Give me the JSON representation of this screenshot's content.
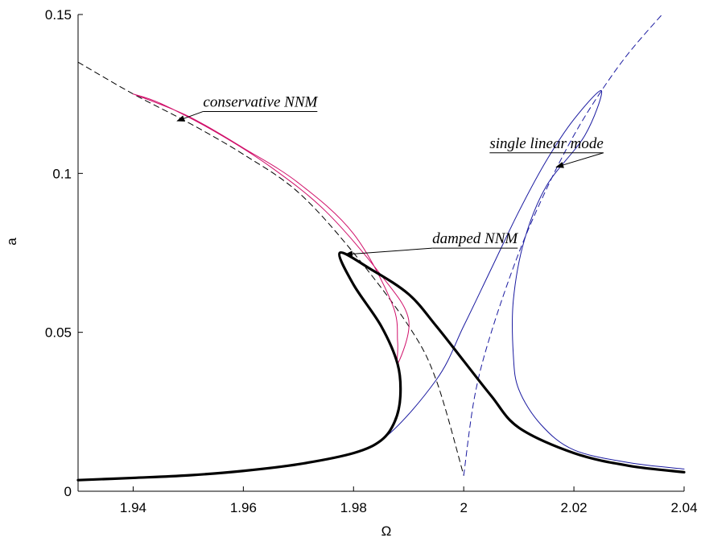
{
  "chart_data": {
    "type": "line",
    "title": "",
    "xlabel": "Ω",
    "ylabel": "a",
    "xlim": [
      1.93,
      2.04
    ],
    "ylim": [
      0,
      0.15
    ],
    "xticks": [
      1.94,
      1.96,
      1.98,
      2,
      2.02,
      2.04
    ],
    "xtick_labels": [
      "1.94",
      "1.96",
      "1.98",
      "2",
      "2.02",
      "2.04"
    ],
    "yticks": [
      0,
      0.05,
      0.1,
      0.15
    ],
    "ytick_labels": [
      "0",
      "0.05",
      "0.1",
      "0.15"
    ],
    "grid": false,
    "series": [
      {
        "role": "backbone-left",
        "color": "#000000",
        "style": "dashed",
        "points": [
          [
            1.93,
            0.135
          ],
          [
            1.94,
            0.125
          ],
          [
            1.95,
            0.116
          ],
          [
            1.96,
            0.106
          ],
          [
            1.97,
            0.094
          ],
          [
            1.98,
            0.075
          ],
          [
            1.99,
            0.052
          ],
          [
            1.995,
            0.035
          ],
          [
            2.0,
            0.005
          ]
        ]
      },
      {
        "role": "backbone-right",
        "color": "#1a1aa0",
        "style": "dashed",
        "points": [
          [
            2.0,
            0.005
          ],
          [
            2.002,
            0.03
          ],
          [
            2.005,
            0.05
          ],
          [
            2.01,
            0.075
          ],
          [
            2.015,
            0.095
          ],
          [
            2.02,
            0.112
          ],
          [
            2.025,
            0.126
          ],
          [
            2.03,
            0.138
          ],
          [
            2.036,
            0.15
          ]
        ]
      },
      {
        "role": "conservative-nnm",
        "color": "#d0106a",
        "style": "solid",
        "points": [
          [
            1.94,
            0.125
          ],
          [
            1.95,
            0.118
          ],
          [
            1.96,
            0.108
          ],
          [
            1.97,
            0.097
          ],
          [
            1.98,
            0.081
          ],
          [
            1.987,
            0.059
          ],
          [
            1.988,
            0.047
          ],
          [
            1.988,
            0.04
          ],
          [
            1.99,
            0.054
          ],
          [
            1.985,
            0.068
          ],
          [
            1.975,
            0.088
          ],
          [
            1.965,
            0.102
          ],
          [
            1.955,
            0.113
          ],
          [
            1.945,
            0.122
          ],
          [
            1.94,
            0.125
          ]
        ]
      },
      {
        "role": "single-linear-mode",
        "color": "#1a1aa0",
        "style": "solid",
        "points": [
          [
            1.975,
            0.01
          ],
          [
            1.985,
            0.016
          ],
          [
            1.995,
            0.035
          ],
          [
            2.0,
            0.052
          ],
          [
            2.005,
            0.07
          ],
          [
            2.01,
            0.088
          ],
          [
            2.015,
            0.104
          ],
          [
            2.02,
            0.117
          ],
          [
            2.025,
            0.126
          ],
          [
            2.022,
            0.112
          ],
          [
            2.015,
            0.096
          ],
          [
            2.011,
            0.079
          ],
          [
            2.009,
            0.06
          ],
          [
            2.009,
            0.043
          ],
          [
            2.01,
            0.032
          ],
          [
            2.014,
            0.021
          ],
          [
            2.02,
            0.013
          ],
          [
            2.03,
            0.009
          ],
          [
            2.04,
            0.007
          ]
        ]
      },
      {
        "role": "damped-nnm",
        "color": "#000000",
        "style": "solid",
        "width": "thick",
        "points": [
          [
            1.93,
            0.0035
          ],
          [
            1.94,
            0.0042
          ],
          [
            1.95,
            0.005
          ],
          [
            1.96,
            0.0064
          ],
          [
            1.97,
            0.0085
          ],
          [
            1.98,
            0.012
          ],
          [
            1.985,
            0.016
          ],
          [
            1.9875,
            0.022
          ],
          [
            1.9885,
            0.03
          ],
          [
            1.988,
            0.04
          ],
          [
            1.985,
            0.052
          ],
          [
            1.98,
            0.065
          ],
          [
            1.9775,
            0.075
          ],
          [
            1.983,
            0.07
          ],
          [
            1.99,
            0.062
          ],
          [
            1.995,
            0.052
          ],
          [
            2.0,
            0.041
          ],
          [
            2.005,
            0.03
          ],
          [
            2.01,
            0.02
          ],
          [
            2.02,
            0.012
          ],
          [
            2.03,
            0.008
          ],
          [
            2.04,
            0.006
          ]
        ]
      }
    ],
    "annotations": [
      {
        "text": "conservative NNM",
        "text_at": [
          1.9527,
          0.121
        ],
        "arrow_to": [
          1.948,
          0.1165
        ]
      },
      {
        "text": "single linear mode",
        "text_at": [
          2.0047,
          0.108
        ],
        "arrow_to": [
          2.0168,
          0.102
        ]
      },
      {
        "text": "damped NNM",
        "text_at": [
          1.9943,
          0.078
        ],
        "arrow_to": [
          1.9785,
          0.0745
        ]
      }
    ]
  }
}
